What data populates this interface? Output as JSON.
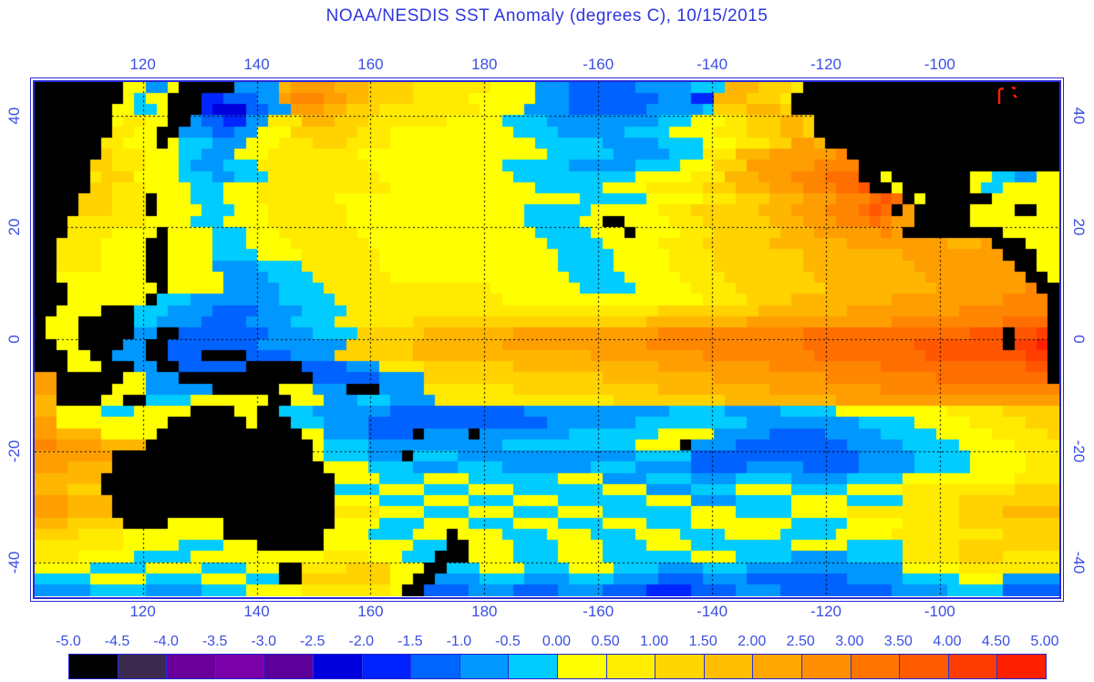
{
  "title": "NOAA/NESDIS SST Anomaly (degrees C),  10/15/2015",
  "colors": {
    "background": "#FFFFFF",
    "title_blue": "#2E36DD",
    "axis_label_blue": "#3B4FE2",
    "frame_blue": "#2A2AD8",
    "grid_dots": "#000000",
    "land": "#000000",
    "corner_artifact_red": "#FF2000"
  },
  "axes": {
    "lon_tick_labels": [
      "120",
      "140",
      "160",
      "180",
      "-160",
      "-140",
      "-120",
      "-100"
    ],
    "lon_tick_values": [
      120,
      140,
      160,
      180,
      -160,
      -140,
      -120,
      -100
    ],
    "lat_tick_labels": [
      "40",
      "20",
      "0",
      "-20",
      "-40"
    ],
    "lat_tick_values": [
      40,
      20,
      0,
      -20,
      -40
    ]
  },
  "colorbar": {
    "tick_labels": [
      "-5.0",
      "-4.5",
      "-4.0",
      "-3.5",
      "-3.0",
      "-2.5",
      "-2.0",
      "-1.5",
      "-1.0",
      "-0.5",
      "0.00",
      "0.50",
      "1.00",
      "1.50",
      "2.00",
      "2.50",
      "3.00",
      "3.50",
      "4.00",
      "4.50",
      "5.00"
    ],
    "cell_colors": [
      "#000000",
      "#3C2B4E",
      "#6A0099",
      "#7A00A8",
      "#5C0099",
      "#0000DD",
      "#0022FF",
      "#0064FF",
      "#0098FF",
      "#00CCFF",
      "#FFFF00",
      "#FFEE00",
      "#FFD600",
      "#FFBE00",
      "#FFA600",
      "#FF8E00",
      "#FF7400",
      "#FF5A00",
      "#FF3C00",
      "#FF2000"
    ]
  },
  "chart_data": {
    "type": "heatmap",
    "title": "NOAA/NESDIS SST Anomaly (degrees C), 10/15/2015",
    "units": "degrees C",
    "value_range": [
      -5.0,
      5.0
    ],
    "lon_range": [
      101,
      281
    ],
    "lat_range": [
      -46,
      46
    ],
    "grid_cols": 92,
    "grid_rows": 46,
    "gridline_lons": [
      120,
      140,
      160,
      180,
      -160,
      -140,
      -120,
      -100
    ],
    "gridline_lats": [
      40,
      20,
      0,
      -20,
      -40
    ],
    "legend_position": "bottom",
    "grid": "dotted",
    "palette": {
      "0": "#FFFF00",
      "1": "#FFEA00",
      "2": "#FFD200",
      "3": "#FFB600",
      "4": "#FF9E00",
      "5": "#FF8600",
      "6": "#FF6E00",
      "7": "#FF5600",
      "8": "#FF3E00",
      "9": "#FF2000",
      "A": "#00CCFF",
      "B": "#0098FF",
      "C": "#0062FF",
      "D": "#0026FF",
      "E": "#0000DD",
      "F": "#5C0099",
      "L": "#000000"
    },
    "palette_value_bins": {
      "0": [
        0,
        0.5
      ],
      "1": [
        0.5,
        1
      ],
      "2": [
        1,
        1.5
      ],
      "3": [
        1.5,
        2
      ],
      "4": [
        2,
        2.5
      ],
      "5": [
        2.5,
        3
      ],
      "6": [
        3,
        3.5
      ],
      "7": [
        3.5,
        4
      ],
      "8": [
        4,
        4.5
      ],
      "9": [
        4.5,
        5
      ],
      "A": [
        -0.5,
        0
      ],
      "B": [
        -1,
        -0.5
      ],
      "C": [
        -1.5,
        -1
      ],
      "D": [
        -2,
        -1.5
      ],
      "E": [
        -2.5,
        -2
      ],
      "F": [
        -3,
        -2.5
      ],
      "L": "land"
    },
    "rows": [
      "LLLLLLLL00BB0LLLLLBBBB34444333222211111110000BBBCCCCCCBBBBBAAA3332221LLLLLLLLLLLLLLLLLLLLLLL",
      "LLLLLLLL0A00LLLDDCCCBB45554433222211111000000BBBCCCCCCCCBBBDD3332221LLLLLLLLLLLLLLLLLLLLLLLL",
      "LLLLLLL00AA0LLLDEEECCBB444332221111111110000BBBBCCCCCCCBBBBBA2223332LLLLLLLLLLLLLLLLLLLLLLLL",
      "LLLLLLL01100LLBCCDDBB111333222111111100000AAAABBBBBBBBBBAAA00011222332LLLLLLLLLLLLLLLLLLLLLL",
      "LLLLLLL1100LLBBBCCBB00022222211100000000000AAAABBBBBBAAAA0000111222332LLLLLLLLLLLLLLLLLLLLLL",
      "LLLLLL11000L0AAABBB00011122211110000000000000AAAAAABBBBBAAAA00011122443LLLLLLLLLLLLLLLLLLLLL",
      "LLLLLL2111000AABBB0001111111100000000000000000AAAAAABBBBBAAA1113334444445LLLLLLLLLLLLLLLLLLL",
      "LLLLL22111000ABBBAAA1111111111000000000000AAAAAABBBBBBAAAA0002224444445555LLLLLLLLLLLLLLLLLL",
      "LLLLL12220000AAABBAAA1111111111000000000000AAAAAAAAAAA00000111333444555666LL0LLLLLLL00AABB00",
      "LLLLL221110000AAA0001111111111110000000000000AAAAAA000011111222333444555667LL0LLLLLL0AA00000",
      "LLLL222111L000AAA00011111110000000000000000000000AAAAAA00000111222333444555676L0LLLLLL00000000",
      "LLLL222111L0000AAA00011111110000000000000000AAAAAA000000111222222333444555676L4LLLLL0000LL00",
      "LLL11111110000AAA000011111110000000000000000AAAAA00LL00001112222223334445556544LLLLL00000000",
      "LLL11110000L0000AAA00011111110000000000000000AAAAA000L000011122222233344444454LLLLLLLLL00000",
      "LL11110000LL0000AAA000011111110000000000000000AAAAA00000111122222233333334444444443334LLL000",
      "LL11110000LL0000AAAA000011111110000000000000000AAAAA00000111122222222333333333444444444LLL00",
      "LL11110000LL0000BBBBAAAA11111110000000000000000AAAAA000001111222222223333333333444444444LL00",
      "LL00000000LL00000BBBBAAAA11111110000000000000000AAAAA000001111222222223333333333444444444LL0",
      "LLL00000000L00000BBBBBAAAA11111111111111100000000AAAAA000001111222222223333333333444444445LL",
      "LLL0000000LAAABBBBBBBBAAAAA1111111111111110000000000000000001111222233333333344444444445555L",
      "LL0000LLLAAABBBBCCCCBBBBAAAA111111111111111111111111111122222222233333333444444444455555555L",
      "L000LLLLLAABBBBCCCCBBBBAAAA1111111222222222222222222222333333333444444444444455555555556666L",
      "L000LLLLLBBLLCCCCCCCCBBBBAAAA2222223333333344444444444445555555555555666666666666666777L778L",
      "LL00LLLLBBLLCCCCCCCCBBBBBBBB22222233333333444444444444455555555555555666666666677777777L889L",
      "LLL00LLBBBLLCCCLLLLCCCCBBBB2222222333333333333333344444444445555555555666666666677777777788L",
      "LLL000LLLBBLLCCCCCCLLLLLCCCCBBB111122222222333333333333344444444445555555555666666666666677L",
      "44LLLLLL00BBBLLLLLLLLLLLLCCCCCCBBBB22222222222222223333333333444444444455555555556666666666L",
      "44LLLLL000BBBBBBLLLLLL000BBBLLLBBBB111111112222222222222333333333344444444445555555555555555",
      "33LLLL00LLAAAA0000000LL000BBBAAABBBB11111111111111112222222222333333333344444444444444444444",
      "330000AAA00000LLLL00LLAAABBBBBBBCCCCCCCCCCCCBBBBBBBBBBBBBAAAAABBBBBAAAAA00000000001111122222",
      "440000000000LLLLLLL0LLLAAABBBBCCCCCCCCCCCCCCCCBBBBBBBBAAAAAAAAAABBBBBBBBBBAAAAA0000011111222",
      "44333300000LLLLLLLLLLLLL00BBBBCCCCLBBBBLBBBBBBBBAAAAAAAA00000BBBBBCCCCCBBBBBAAAAA00000111112",
      "5544443333LLLLLLLLLLLLLLL0AAAABBBBBBBBBBBBAAAAAAAAAAAA0000LBBBBCCCCCCCCCCBBBBBAAAAA000001111",
      "4444444LLLLLLLLLLLLLLLLLL0AAAABBBLAAAABBBBBBBBBBBBBBBBAAAAACCCCCCCCCCCCCCCBBBBBAAAAA00000111",
      "4443333LLLLLLLLLLLLLLLLLLL0000AAAABBBBAAAABBBBBBBBAAAABBBBBCCCCCBBBBBCCCCCBBBBBAAAAA00000111",
      "333333LLLLLLLLLLLLLLLLLLLLL0000AAAA0000AAAAAAAA0000BBBBAAAABBBBAAAAABBBBBAAAAA00000000001111",
      "333222LLLLLLLLLLLLLLLLLLLLLAAAA0000AAAA0000AAAAAAAA0000BBBBAAAA00000AAAAA0000011111111112222",
      "4443333LLLLLLLLLLLLLLLLLLLL0000AAAA0000AAAA0000AAAAAAAA0000BBBBAAAAA00000AAAAA11111222222222",
      "4443333LLLLLLLLLLLLLLLLLLLL11110000AAAA0000AAAA0000AAAAAAAA0000AAAAA00000111111111122223333 3",
      "33322222LLLL00000LLLLLLLLLL0000AAAA0000AAAA0000AAAA0000AAAA000000000AAAAA0000011111222222222",
      "22221111000000000LLLLLLLLL0000AAAA000L0000AAAA0000AAAA0000AAAA00000AAAAA00000111111111122222",
      "1111111100000AAAA000LLLLLL00000000AAALL0000AAAA0000AAAA0000AAAAAAAAA00000AAAAA11111222222222",
      "111100000AAAAA0000000000001111000AAALLL0000AAAA0000AAAAAAAA0000AAAAABBBBBAAAAA11111222211111",
      "00000AAAAA00000AAAA000LL11112222000LLAAA0000AAAA0000AAAABBBBAAAABBBBBBBBBBBBBB00000111111111",
      "AAAAA00000AAAAA0000AAALL2222222200LLBBBBAAAABBBBAAAABBBBCCCCBBBBCCCCCCCCCBBBBBAAAAA0000BBBBB",
      "BBBBBAAAAABBBBBAAAA00000111111110LLCCCCBBBBCCCCBBBBCCCCDDDDCCCCBBBBCCCCCCCCCCBBBBBAAAAACCCCC"
    ]
  }
}
